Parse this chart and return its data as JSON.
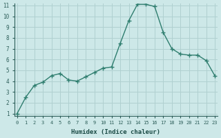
{
  "x": [
    0,
    1,
    2,
    3,
    4,
    5,
    6,
    7,
    8,
    9,
    10,
    11,
    12,
    13,
    14,
    15,
    16,
    17,
    18,
    19,
    20,
    21,
    22,
    23
  ],
  "y": [
    1.0,
    2.5,
    3.6,
    3.9,
    4.5,
    4.7,
    4.1,
    4.0,
    4.4,
    4.8,
    5.2,
    5.3,
    7.5,
    9.6,
    11.1,
    11.1,
    10.9,
    8.5,
    7.0,
    6.5,
    6.4,
    6.4,
    5.9,
    4.5
  ],
  "xlabel": "Humidex (Indice chaleur)",
  "ylim": [
    1,
    11
  ],
  "xlim": [
    0,
    23
  ],
  "line_color": "#2e7d6e",
  "bg_color": "#cde8e8",
  "grid_color": "#b0d0d0",
  "tick_color": "#2e5f5a",
  "label_color": "#1a4a45",
  "yticks": [
    1,
    2,
    3,
    4,
    5,
    6,
    7,
    8,
    9,
    10,
    11
  ],
  "xticks": [
    0,
    1,
    2,
    3,
    4,
    5,
    6,
    7,
    8,
    9,
    10,
    11,
    12,
    13,
    14,
    15,
    16,
    17,
    18,
    19,
    20,
    21,
    22,
    23
  ]
}
